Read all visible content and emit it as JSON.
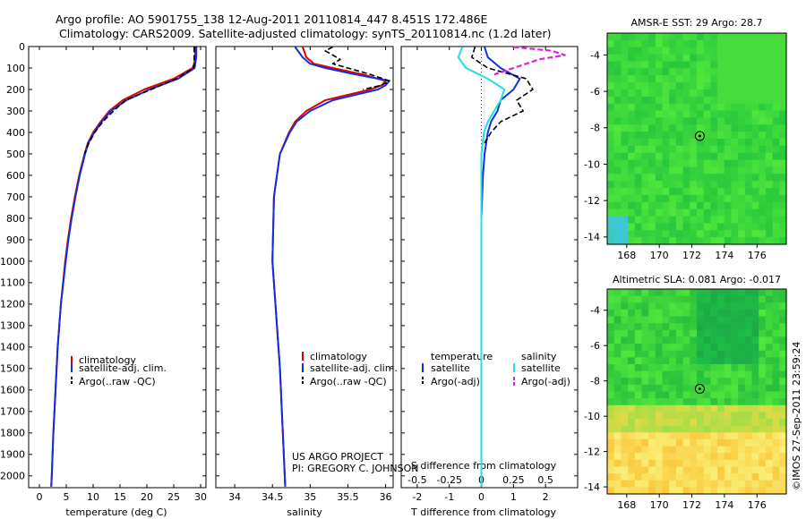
{
  "header": {
    "line1": "Argo profile: AO 5901755_138 12-Aug-2011 20110814_447 8.451S 172.486E",
    "line2": "Climatology: CARS2009. Satellite-adjusted climatology: synTS_20110814.nc (1.2d later)"
  },
  "depth_axis": {
    "ticks": [
      0,
      100,
      200,
      300,
      400,
      500,
      600,
      700,
      800,
      900,
      1000,
      1100,
      1200,
      1300,
      1400,
      1500,
      1600,
      1700,
      1800,
      1900,
      2000
    ],
    "range": [
      0,
      2055
    ]
  },
  "annotations": {
    "project_line1": "US ARGO PROJECT",
    "project_line2": "PI: GREGORY C. JOHNSON",
    "watermark": "©IMOS 27-Sep-2011 23:59:24"
  },
  "colors": {
    "climatology": "#e00000",
    "satellite": "#1030e0",
    "argo": "#000000",
    "sal_satellite": "#20e0e0",
    "sal_argo": "#e020e0"
  },
  "chart_data": [
    {
      "type": "line",
      "xlabel": "temperature (deg C)",
      "xlim": [
        -2,
        31
      ],
      "xticks": [
        0,
        5,
        10,
        15,
        20,
        25,
        30
      ],
      "ylim": [
        0,
        2055
      ],
      "y_reversed": true,
      "legend": [
        "climatology",
        "satellite-adj. clim.",
        "Argo(..raw -QC)"
      ],
      "series": [
        {
          "name": "climatology",
          "depth": [
            2,
            20,
            50,
            80,
            100,
            150,
            200,
            250,
            300,
            350,
            400,
            450,
            500,
            600,
            700,
            800,
            900,
            1000,
            1200,
            1400,
            1600,
            1800,
            2000,
            2050
          ],
          "values": [
            29.0,
            29.0,
            29.0,
            28.8,
            28.5,
            25.0,
            19.5,
            15.5,
            13.0,
            11.4,
            10.0,
            9.0,
            8.4,
            7.4,
            6.6,
            5.9,
            5.3,
            4.8,
            4.0,
            3.4,
            3.0,
            2.6,
            2.3,
            2.2
          ]
        },
        {
          "name": "satellite-adj. clim.",
          "depth": [
            2,
            20,
            50,
            80,
            100,
            150,
            200,
            250,
            300,
            350,
            400,
            450,
            500,
            600,
            700,
            800,
            900,
            1000,
            1200,
            1400,
            1600,
            1800,
            2000,
            2050
          ],
          "values": [
            29.2,
            29.2,
            29.2,
            29.0,
            28.9,
            25.8,
            20.5,
            16.2,
            13.3,
            11.6,
            10.2,
            9.1,
            8.5,
            7.5,
            6.7,
            6.0,
            5.4,
            4.9,
            4.0,
            3.4,
            3.0,
            2.6,
            2.3,
            2.2
          ]
        },
        {
          "name": "Argo(..raw -QC)",
          "depth": [
            2,
            20,
            50,
            80,
            100,
            150,
            200,
            250,
            300,
            350,
            400,
            450,
            500
          ],
          "values": [
            28.8,
            28.8,
            28.8,
            28.8,
            28.7,
            25.5,
            20.8,
            16.0,
            13.8,
            11.8,
            10.3,
            9.2,
            8.4
          ]
        }
      ]
    },
    {
      "type": "line",
      "xlabel": "salinity",
      "xlim": [
        33.75,
        36.1
      ],
      "xticks": [
        34,
        34.5,
        35,
        35.5,
        36
      ],
      "ylim": [
        0,
        2055
      ],
      "y_reversed": true,
      "legend": [
        "climatology",
        "satellite-adj. clim.",
        "Argo(..raw -QC)"
      ],
      "series": [
        {
          "name": "climatology",
          "depth": [
            2,
            50,
            80,
            100,
            130,
            160,
            180,
            200,
            250,
            300,
            350,
            400,
            500,
            700,
            1000,
            1500,
            2050
          ],
          "values": [
            34.9,
            34.95,
            35.05,
            35.3,
            35.7,
            36.0,
            35.95,
            35.8,
            35.2,
            34.95,
            34.8,
            34.72,
            34.6,
            34.52,
            34.5,
            34.6,
            34.67
          ]
        },
        {
          "name": "satellite-adj. clim.",
          "depth": [
            2,
            50,
            80,
            100,
            130,
            160,
            180,
            200,
            250,
            300,
            350,
            400,
            500,
            700,
            1000,
            1500,
            2050
          ],
          "values": [
            34.8,
            34.9,
            35.0,
            35.2,
            35.6,
            36.05,
            36.0,
            35.9,
            35.3,
            35.0,
            34.82,
            34.73,
            34.6,
            34.52,
            34.5,
            34.6,
            34.67
          ]
        },
        {
          "name": "Argo(..raw -QC)",
          "depth": [
            2,
            20,
            40,
            60,
            80,
            100,
            130,
            160,
            180,
            200
          ],
          "values": [
            35.3,
            35.2,
            35.3,
            35.4,
            35.3,
            35.5,
            35.8,
            36.05,
            35.95,
            35.7
          ]
        }
      ]
    },
    {
      "type": "line",
      "xlabel": "T difference from climatology",
      "xlabel_top": "S difference from climatology",
      "xlim": [
        -2.5,
        3.0
      ],
      "xticks_bottom": [
        -2,
        -1,
        0,
        1,
        2
      ],
      "xticks_top": [
        -0.5,
        -0.25,
        0,
        0.25,
        0.5
      ],
      "ylim": [
        0,
        2055
      ],
      "y_reversed": true,
      "legend_temperature_title": "temperature",
      "legend_temperature": [
        "satellite",
        "Argo(-adj)"
      ],
      "legend_salinity_title": "salinity",
      "legend_salinity": [
        "satellite",
        "Argo(-adj)"
      ],
      "series": [
        {
          "name": "T satellite",
          "depth": [
            2,
            50,
            100,
            150,
            200,
            250,
            300,
            350,
            400,
            500,
            600,
            800,
            1000,
            1500,
            2050
          ],
          "values": [
            0.1,
            0.2,
            0.6,
            1.2,
            1.0,
            0.6,
            0.5,
            0.3,
            0.2,
            0.1,
            0.05,
            0.0,
            0.0,
            0.0,
            0.0
          ]
        },
        {
          "name": "T Argo(-adj)",
          "depth": [
            2,
            50,
            100,
            150,
            200,
            250,
            300,
            350,
            400,
            450
          ],
          "values": [
            -0.2,
            -0.3,
            0.2,
            1.4,
            1.6,
            1.1,
            1.3,
            0.6,
            0.3,
            0.1
          ]
        },
        {
          "name": "S satellite",
          "depth": [
            2,
            50,
            100,
            150,
            200,
            250,
            300,
            350,
            400,
            500,
            700,
            1000,
            1500,
            2050
          ],
          "values": [
            -0.15,
            -0.18,
            -0.12,
            0.05,
            0.18,
            0.15,
            0.1,
            0.05,
            0.02,
            0.0,
            0.0,
            0.0,
            0.0,
            0.0
          ]
        },
        {
          "name": "S Argo(-adj)",
          "depth": [
            2,
            20,
            40,
            60,
            80,
            100,
            130
          ],
          "values": [
            0.25,
            0.55,
            0.65,
            0.45,
            0.35,
            0.25,
            0.1
          ]
        }
      ]
    },
    {
      "type": "heatmap",
      "title": "AMSR-E SST: 29 Argo: 28.7",
      "xticks": [
        168,
        170,
        172,
        174,
        176
      ],
      "yticks": [
        -4,
        -6,
        -8,
        -10,
        -12,
        -14
      ],
      "xlim": [
        166.8,
        177.8
      ],
      "ylim": [
        -14.4,
        -2.8
      ],
      "marker": {
        "lon": 172.486,
        "lat": -8.451
      }
    },
    {
      "type": "heatmap",
      "title": "Altimetric SLA: 0.081 Argo: -0.017",
      "xticks": [
        168,
        170,
        172,
        174,
        176
      ],
      "yticks": [
        -4,
        -6,
        -8,
        -10,
        -12,
        -14
      ],
      "xlim": [
        166.8,
        177.8
      ],
      "ylim": [
        -14.4,
        -2.8
      ],
      "marker": {
        "lon": 172.486,
        "lat": -8.451
      }
    }
  ]
}
